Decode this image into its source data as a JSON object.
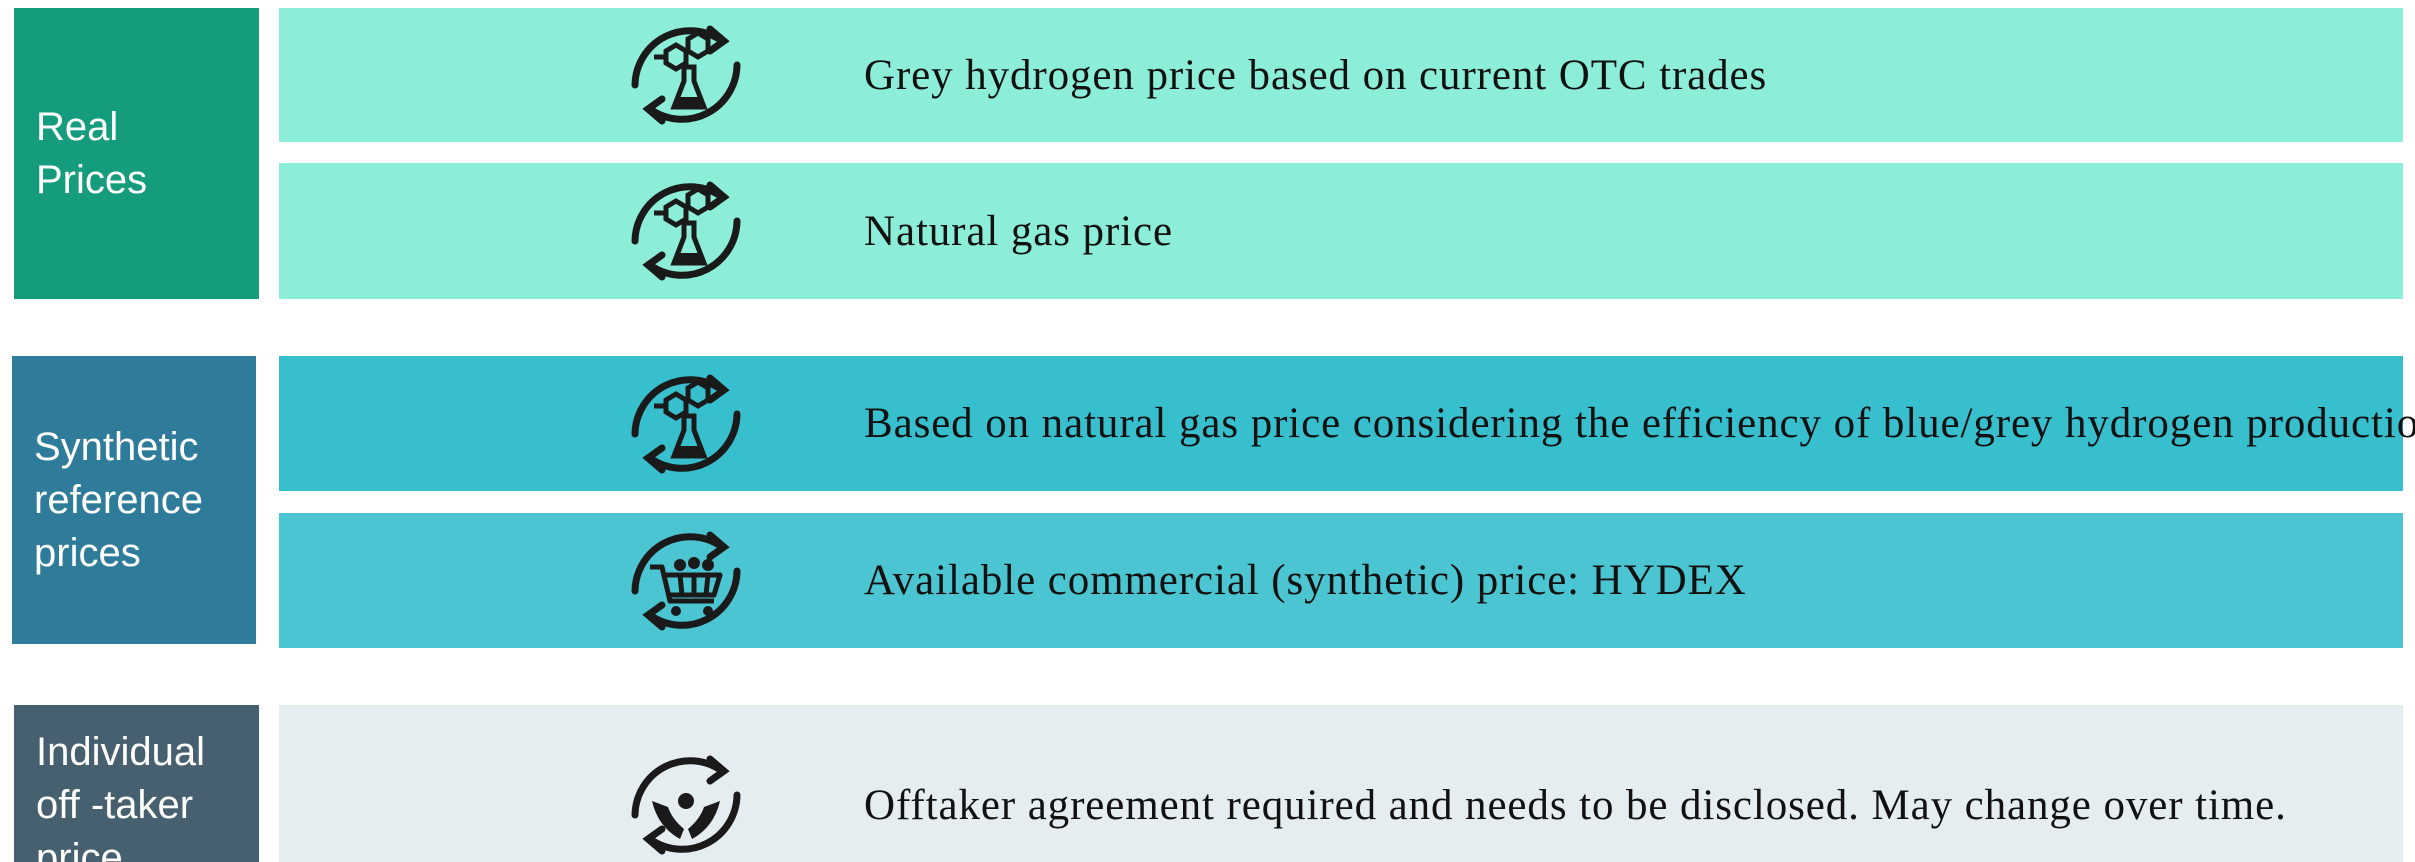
{
  "groups": [
    {
      "label": [
        "Real",
        "Prices"
      ],
      "rows": [
        {
          "text": "Grey hydrogen price based on current OTC trades"
        },
        {
          "text": "Natural gas price"
        }
      ]
    },
    {
      "label": [
        "Synthetic",
        "reference",
        "prices"
      ],
      "rows": [
        {
          "text": "Based on natural gas price considering the efficiency of blue/grey hydrogen production"
        },
        {
          "text": "Available commercial (synthetic) price: HYDEX"
        }
      ]
    },
    {
      "label": [
        "Individual",
        "off -taker",
        "price"
      ],
      "rows": [
        {
          "text": "Offtaker agreement required and needs to be disclosed. May change over time."
        }
      ]
    }
  ]
}
